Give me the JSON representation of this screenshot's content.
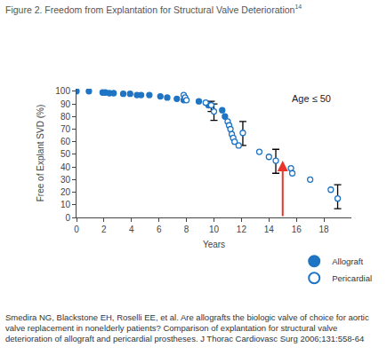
{
  "chart_data": {
    "type": "scatter",
    "title": "Figure 2. Freedom from Explantation for Structural Valve Deterioration",
    "title_ref": "14",
    "x_label": "Years",
    "y_label": "Free of Explant SVD (%)",
    "annotation": {
      "text": "Age ≤ 50",
      "x": 17.1,
      "y": 94
    },
    "arrow": {
      "x": 15,
      "y_start": 0,
      "y_end": 45,
      "color": "#e8342a"
    },
    "source": "Smedira NG, Blackstone EH, Roselli EE, et al. Are allografts the biologic valve of choice for aortic valve replacement in nonelderly patients? Comparison of explantation for structural valve deterioration of allograft and pericardial prostheses. J Thorac Cardiovasc Surg 2006;131:558-64",
    "xlim": [
      0,
      20
    ],
    "xticks": [
      0,
      2,
      4,
      6,
      8,
      10,
      12,
      14,
      16,
      18
    ],
    "ylim": [
      0,
      102
    ],
    "yticks": [
      0,
      10,
      20,
      30,
      40,
      50,
      60,
      70,
      80,
      90,
      100
    ],
    "grid": false,
    "legend": "lower right",
    "series": [
      {
        "name": "Allograft",
        "color": "#1f74c4",
        "marker": "filled",
        "x": [
          0,
          0.9,
          1.9,
          2.1,
          2.4,
          2.7,
          3.4,
          3.9,
          4.4,
          4.7,
          5.3,
          6.1,
          6.6,
          7.3,
          7.8,
          8.9,
          9.6,
          10.6,
          10.8
        ],
        "values": [
          100,
          100,
          99,
          99,
          98.5,
          98.5,
          98,
          98,
          97,
          97,
          97,
          96,
          95,
          94,
          93,
          92,
          89,
          85,
          80
        ]
      },
      {
        "name": "Pericardial",
        "color": "#1f74c4",
        "marker": "open",
        "x": [
          7.8,
          7.9,
          8.0,
          9.4,
          9.8,
          10.0,
          11.0,
          11.1,
          11.2,
          11.3,
          11.4,
          11.5,
          11.8,
          12.1,
          13.3,
          14.0,
          14.5,
          15.6,
          15.7,
          17.0,
          18.5,
          19.0
        ],
        "values": [
          97,
          95,
          93,
          91,
          89,
          84,
          76,
          73,
          70,
          66,
          63,
          60,
          57,
          67,
          52,
          48,
          45,
          39,
          35,
          30,
          22,
          15
        ],
        "error_plus": [
          null,
          null,
          null,
          null,
          3,
          6,
          null,
          null,
          null,
          null,
          null,
          null,
          null,
          9,
          null,
          null,
          9,
          null,
          null,
          null,
          null,
          11
        ],
        "error_minus": [
          null,
          null,
          null,
          null,
          5,
          7,
          null,
          null,
          null,
          null,
          null,
          null,
          null,
          10,
          null,
          null,
          10,
          null,
          null,
          null,
          null,
          8
        ]
      }
    ]
  }
}
